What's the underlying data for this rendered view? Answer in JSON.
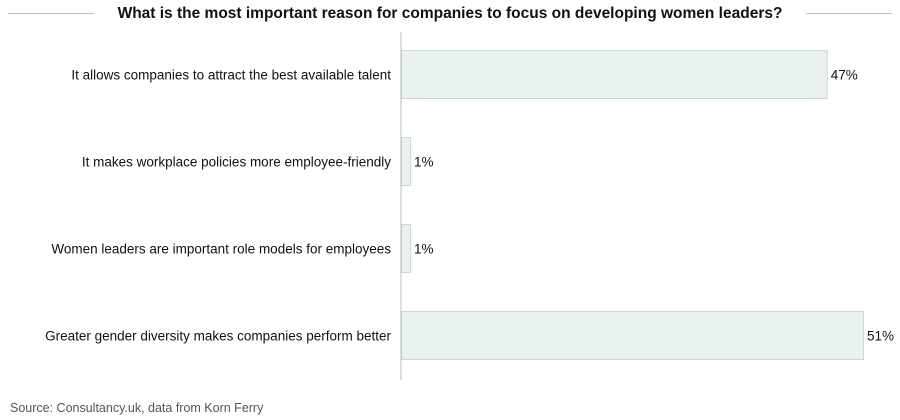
{
  "chart_data": {
    "type": "bar",
    "orientation": "horizontal",
    "title": "What is the most important reason for companies to focus on developing women leaders?",
    "categories": [
      "It allows companies to attract the best available talent",
      "It makes workplace policies more employee-friendly",
      "Women leaders are important role models for employees",
      "Greater gender diversity makes companies perform better"
    ],
    "values": [
      47,
      1,
      1,
      51
    ],
    "value_labels": [
      "47%",
      "1%",
      "1%",
      "51%"
    ],
    "unit": "%",
    "xlim": [
      0,
      51
    ],
    "grid": false,
    "legend": "none",
    "bar_color": "#e9f1f1",
    "bar_border_color": "#c9d8d8",
    "axis_color": "#bbbbbb"
  },
  "source": "Source: Consultancy.uk, data from Korn Ferry"
}
